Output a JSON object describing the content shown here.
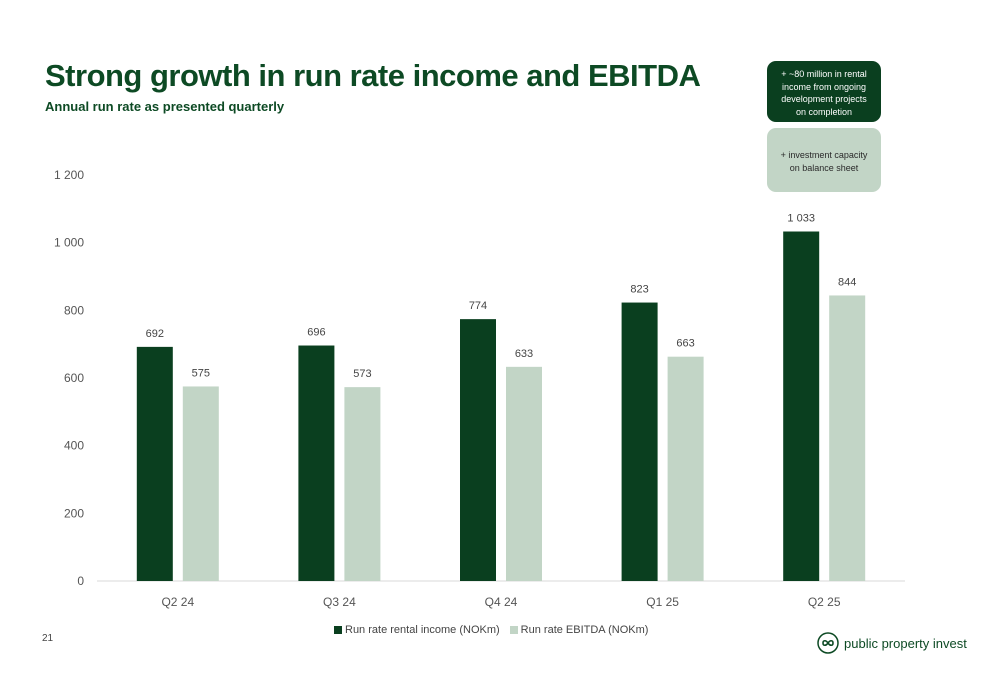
{
  "title": "Strong growth in run rate income and EBITDA",
  "subtitle": "Annual run rate as presented quarterly",
  "callouts": {
    "dark": "+ ~80 million in rental income from ongoing development projects on completion",
    "light": "+ investment capacity on balance sheet"
  },
  "page_number": "21",
  "logo": {
    "text": "public property invest",
    "icon": "infinity-logo-icon"
  },
  "colors": {
    "income": "#0a3f1f",
    "ebitda": "#c2d5c6",
    "title": "#0d4a24"
  },
  "chart_data": {
    "type": "bar",
    "categories": [
      "Q2 24",
      "Q3 24",
      "Q4 24",
      "Q1 25",
      "Q2 25"
    ],
    "series": [
      {
        "name": "Run rate rental income (NOKm)",
        "values": [
          692,
          696,
          774,
          823,
          1033
        ]
      },
      {
        "name": "Run rate EBITDA  (NOKm)",
        "values": [
          575,
          573,
          633,
          663,
          844
        ]
      }
    ],
    "value_labels": [
      [
        "692",
        "696",
        "774",
        "823",
        "1 033"
      ],
      [
        "575",
        "573",
        "633",
        "663",
        "844"
      ]
    ],
    "y_ticks": [
      "0",
      "200",
      "400",
      "600",
      "800",
      "1 000",
      "1 200"
    ],
    "ylim": [
      0,
      1200
    ],
    "grid": false,
    "legend_position": "bottom"
  }
}
